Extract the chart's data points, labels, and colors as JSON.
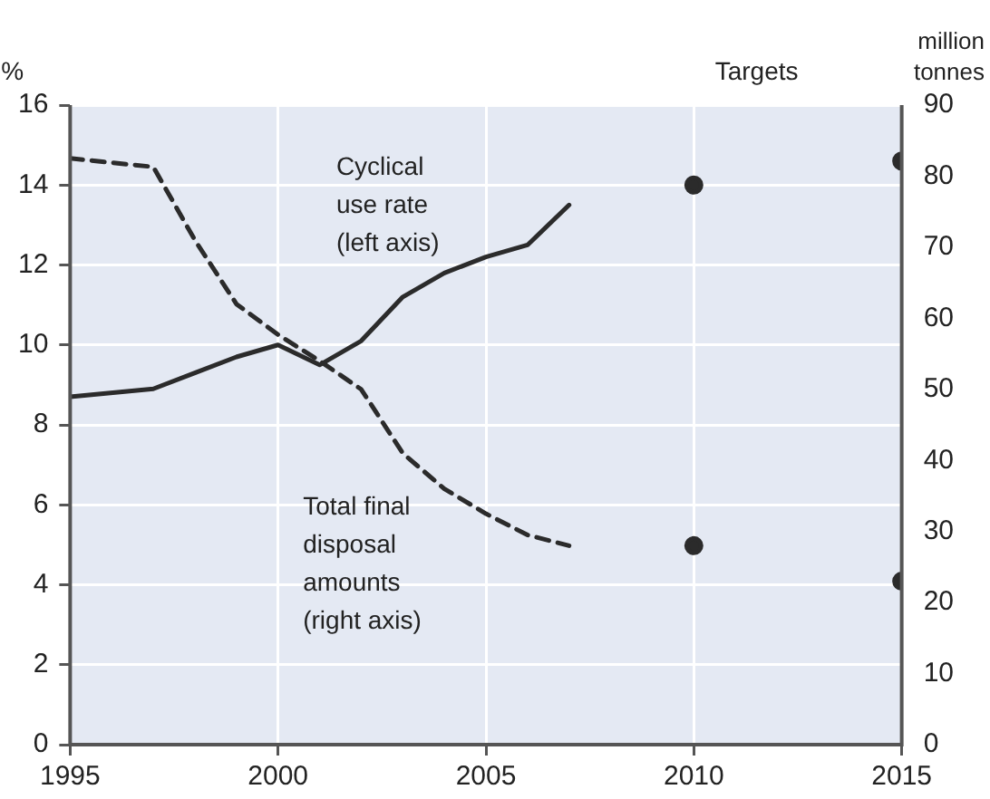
{
  "chart_data": {
    "type": "line",
    "ylabel": "%",
    "y2label": "million tonnes",
    "annotations": [
      "Targets"
    ],
    "xlim": [
      1995,
      2015
    ],
    "xticks": [
      1995,
      2000,
      2005,
      2010,
      2015
    ],
    "ylim": [
      0,
      16
    ],
    "yticks": [
      0,
      2,
      4,
      6,
      8,
      10,
      12,
      14,
      16
    ],
    "y2lim": [
      0,
      90
    ],
    "y2ticks": [
      0,
      10,
      20,
      30,
      40,
      50,
      60,
      70,
      80,
      90
    ],
    "grid": true,
    "legend": false,
    "series": [
      {
        "name": "Cyclical use rate (left axis)",
        "color": "#2b2b2b",
        "line_style": "solid",
        "marker": "none",
        "x": [
          1995,
          1997,
          1998,
          1999,
          2000,
          2001,
          2002,
          2003,
          2004,
          2005,
          2006,
          2007
        ],
        "values": [
          8.7,
          8.9,
          9.3,
          9.7,
          10.0,
          9.5,
          10.1,
          11.2,
          11.8,
          12.2,
          12.5,
          13.5
        ]
      },
      {
        "name": "Total final disposal amounts (right axis)",
        "color": "#2b2b2b",
        "axis": "y2",
        "line_style": "dashed",
        "marker": "none",
        "x": [
          1995,
          1997,
          1998,
          1999,
          2000,
          2001,
          2002,
          2003,
          2004,
          2005,
          2006,
          2007
        ],
        "values": [
          82.5,
          81.3,
          71,
          62,
          57.7,
          54,
          50,
          41,
          36,
          32.5,
          29.5,
          28
        ]
      },
      {
        "type": "scatter",
        "color": "#2b2b2b",
        "marker": "circle",
        "x": [
          2010,
          2015
        ],
        "values": [
          14.0,
          14.6
        ]
      },
      {
        "type": "scatter",
        "color": "#2b2b2b",
        "marker": "circle",
        "axis": "y2",
        "x": [
          2010,
          2015
        ],
        "values": [
          28,
          23
        ]
      }
    ]
  }
}
